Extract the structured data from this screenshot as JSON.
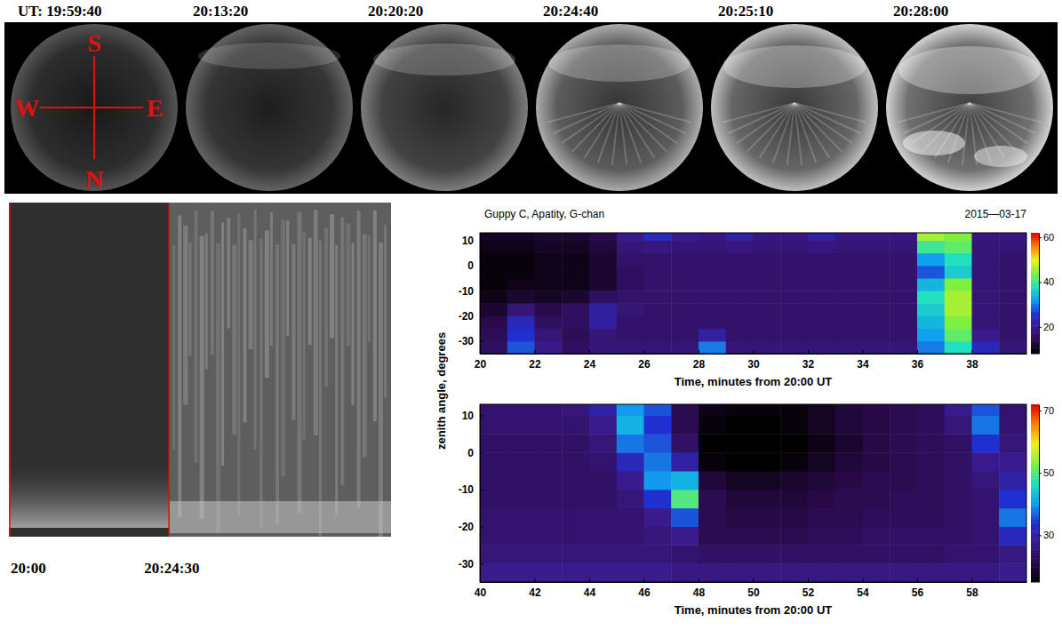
{
  "sky_images": {
    "times": [
      "UT: 19:59:40",
      "20:13:20",
      "20:20:20",
      "20:24:40",
      "20:25:10",
      "20:28:00"
    ],
    "compass": {
      "south": "S",
      "west": "W",
      "east": "E",
      "north": "N"
    }
  },
  "keogram": {
    "labels": [
      "20:00",
      "20:24:30"
    ]
  },
  "header": {
    "title": "Guppy C, Apatity, G-chan",
    "date": "2015—03-17"
  },
  "chart_data": [
    {
      "type": "heatmap",
      "ylabel": "zenith angle, degrees",
      "xlabel": "Time, minutes from 20:00 UT",
      "xlim": [
        20,
        40
      ],
      "xticks": [
        20,
        22,
        24,
        26,
        28,
        30,
        32,
        34,
        36,
        38
      ],
      "ylim": [
        -35,
        13
      ],
      "yticks": [
        -30,
        -20,
        -10,
        0,
        10
      ],
      "x": [
        20.5,
        21.5,
        22.5,
        23.5,
        24.5,
        25.5,
        26.5,
        27.5,
        28.5,
        29.5,
        30.5,
        31.5,
        32.5,
        33.5,
        34.5,
        35.5,
        36.5,
        37.5,
        38.5,
        39.5
      ],
      "y": [
        -32.5,
        -27.5,
        -22.5,
        -17.5,
        -12.5,
        -7.5,
        -2.5,
        2.5,
        7.5,
        12.5
      ],
      "values": [
        [
          16,
          28,
          20,
          16,
          18,
          18,
          18,
          18,
          30,
          18,
          18,
          18,
          18,
          18,
          18,
          18,
          30,
          38,
          24,
          18
        ],
        [
          15,
          26,
          18,
          15,
          18,
          17,
          17,
          17,
          22,
          17,
          17,
          17,
          17,
          17,
          17,
          17,
          32,
          42,
          20,
          17
        ],
        [
          14,
          24,
          16,
          16,
          22,
          17,
          17,
          17,
          17,
          17,
          17,
          17,
          17,
          17,
          17,
          17,
          34,
          44,
          18,
          17
        ],
        [
          12,
          18,
          14,
          16,
          22,
          18,
          17,
          17,
          17,
          17,
          17,
          17,
          17,
          17,
          17,
          17,
          36,
          46,
          18,
          17
        ],
        [
          10,
          12,
          11,
          12,
          16,
          17,
          17,
          17,
          17,
          17,
          17,
          17,
          17,
          17,
          17,
          17,
          38,
          46,
          18,
          17
        ],
        [
          9,
          10,
          10,
          10,
          12,
          16,
          17,
          17,
          17,
          17,
          17,
          17,
          17,
          17,
          17,
          17,
          34,
          44,
          18,
          17
        ],
        [
          9,
          9,
          10,
          10,
          12,
          16,
          17,
          17,
          17,
          17,
          17,
          17,
          17,
          17,
          17,
          17,
          28,
          36,
          18,
          17
        ],
        [
          9,
          9,
          10,
          10,
          12,
          17,
          17,
          17,
          17,
          17,
          17,
          17,
          17,
          17,
          17,
          17,
          32,
          38,
          18,
          17
        ],
        [
          10,
          10,
          11,
          11,
          13,
          18,
          19,
          18,
          18,
          19,
          18,
          18,
          19,
          18,
          18,
          18,
          40,
          42,
          18,
          18
        ],
        [
          11,
          11,
          12,
          12,
          14,
          20,
          24,
          20,
          19,
          22,
          19,
          19,
          22,
          19,
          19,
          19,
          46,
          44,
          19,
          19
        ]
      ],
      "colorbar": {
        "range": [
          8,
          62
        ],
        "ticks": [
          20,
          40,
          60
        ]
      }
    },
    {
      "type": "heatmap",
      "xlabel": "Time, minutes from 20:00 UT",
      "xlim": [
        40,
        60
      ],
      "xticks": [
        40,
        42,
        44,
        46,
        48,
        50,
        52,
        54,
        56,
        58
      ],
      "ylim": [
        -35,
        13
      ],
      "yticks": [
        -30,
        -20,
        -10,
        0,
        10
      ],
      "x": [
        40.5,
        41.5,
        42.5,
        43.5,
        44.5,
        45.5,
        46.5,
        47.5,
        48.5,
        49.5,
        50.5,
        51.5,
        52.5,
        53.5,
        54.5,
        55.5,
        56.5,
        57.5,
        58.5,
        59.5
      ],
      "y": [
        -32.5,
        -27.5,
        -22.5,
        -17.5,
        -12.5,
        -7.5,
        -2.5,
        2.5,
        7.5,
        12.5
      ],
      "values": [
        [
          28,
          28,
          28,
          28,
          28,
          28,
          28,
          27,
          27,
          27,
          27,
          27,
          27,
          27,
          27,
          27,
          27,
          27,
          27,
          28
        ],
        [
          26,
          26,
          26,
          26,
          26,
          26,
          26,
          25,
          24,
          24,
          24,
          24,
          24,
          24,
          24,
          24,
          24,
          25,
          25,
          27
        ],
        [
          25,
          25,
          25,
          25,
          25,
          25,
          26,
          28,
          22,
          22,
          22,
          22,
          23,
          23,
          24,
          24,
          24,
          24,
          25,
          32
        ],
        [
          25,
          25,
          25,
          25,
          25,
          25,
          28,
          36,
          22,
          21,
          21,
          21,
          22,
          22,
          23,
          23,
          23,
          24,
          25,
          38
        ],
        [
          24,
          24,
          24,
          24,
          24,
          26,
          34,
          50,
          22,
          20,
          20,
          20,
          21,
          22,
          22,
          23,
          23,
          24,
          25,
          34
        ],
        [
          24,
          24,
          24,
          24,
          24,
          28,
          40,
          42,
          20,
          18,
          18,
          19,
          20,
          21,
          22,
          22,
          23,
          24,
          26,
          30
        ],
        [
          24,
          24,
          24,
          24,
          25,
          32,
          38,
          30,
          16,
          15,
          15,
          16,
          18,
          20,
          21,
          22,
          23,
          24,
          28,
          28
        ],
        [
          24,
          24,
          24,
          24,
          26,
          38,
          36,
          24,
          15,
          14,
          14,
          15,
          17,
          19,
          21,
          22,
          23,
          24,
          34,
          26
        ],
        [
          25,
          25,
          25,
          25,
          28,
          42,
          34,
          22,
          16,
          15,
          15,
          16,
          18,
          20,
          21,
          22,
          23,
          26,
          38,
          25
        ],
        [
          25,
          25,
          25,
          26,
          30,
          40,
          36,
          22,
          17,
          16,
          16,
          16,
          18,
          20,
          21,
          22,
          23,
          28,
          36,
          25
        ]
      ],
      "colorbar": {
        "range": [
          15,
          72
        ],
        "ticks": [
          30,
          50,
          70
        ]
      }
    }
  ]
}
